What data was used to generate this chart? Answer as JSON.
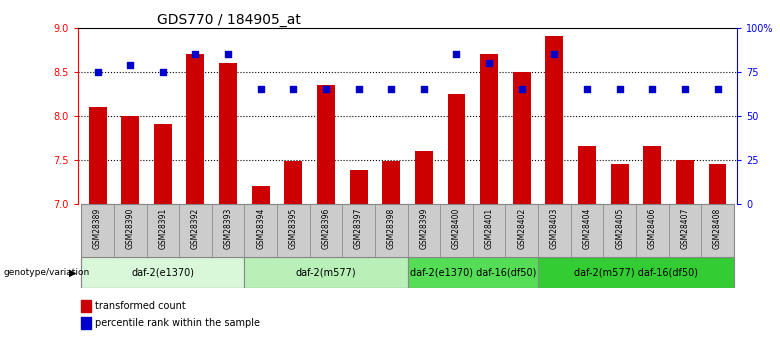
{
  "title": "GDS770 / 184905_at",
  "samples": [
    "GSM28389",
    "GSM28390",
    "GSM28391",
    "GSM28392",
    "GSM28393",
    "GSM28394",
    "GSM28395",
    "GSM28396",
    "GSM28397",
    "GSM28398",
    "GSM28399",
    "GSM28400",
    "GSM28401",
    "GSM28402",
    "GSM28403",
    "GSM28404",
    "GSM28405",
    "GSM28406",
    "GSM28407",
    "GSM28408"
  ],
  "bar_values": [
    8.1,
    8.0,
    7.9,
    8.7,
    8.6,
    7.2,
    7.48,
    8.35,
    7.38,
    7.48,
    7.6,
    8.25,
    8.7,
    8.5,
    8.9,
    7.65,
    7.45,
    7.65,
    7.5,
    7.45
  ],
  "dot_values": [
    75,
    79,
    75,
    85,
    85,
    65,
    65,
    65,
    65,
    65,
    65,
    85,
    80,
    65,
    85,
    65,
    65,
    65,
    65,
    65
  ],
  "ylim_left": [
    7.0,
    9.0
  ],
  "ylim_right": [
    0,
    100
  ],
  "yticks_left": [
    7.0,
    7.5,
    8.0,
    8.5,
    9.0
  ],
  "yticks_right": [
    0,
    25,
    50,
    75,
    100
  ],
  "ytick_labels_right": [
    "0",
    "25",
    "50",
    "75",
    "100%"
  ],
  "bar_color": "#cc0000",
  "dot_color": "#0000cc",
  "bar_bottom": 7.0,
  "grid_values": [
    7.5,
    8.0,
    8.5
  ],
  "groups": [
    {
      "label": "daf-2(e1370)",
      "start": 0,
      "end": 5,
      "color": "#d9f7d9"
    },
    {
      "label": "daf-2(m577)",
      "start": 5,
      "end": 10,
      "color": "#b8f0b8"
    },
    {
      "label": "daf-2(e1370) daf-16(df50)",
      "start": 10,
      "end": 14,
      "color": "#55dd55"
    },
    {
      "label": "daf-2(m577) daf-16(df50)",
      "start": 14,
      "end": 20,
      "color": "#33cc33"
    }
  ],
  "genotype_label": "genotype/variation",
  "legend_bar_label": "transformed count",
  "legend_dot_label": "percentile rank within the sample",
  "title_fontsize": 10,
  "tick_fontsize": 7,
  "sample_fontsize": 5.5,
  "group_fontsize": 7,
  "legend_fontsize": 7
}
